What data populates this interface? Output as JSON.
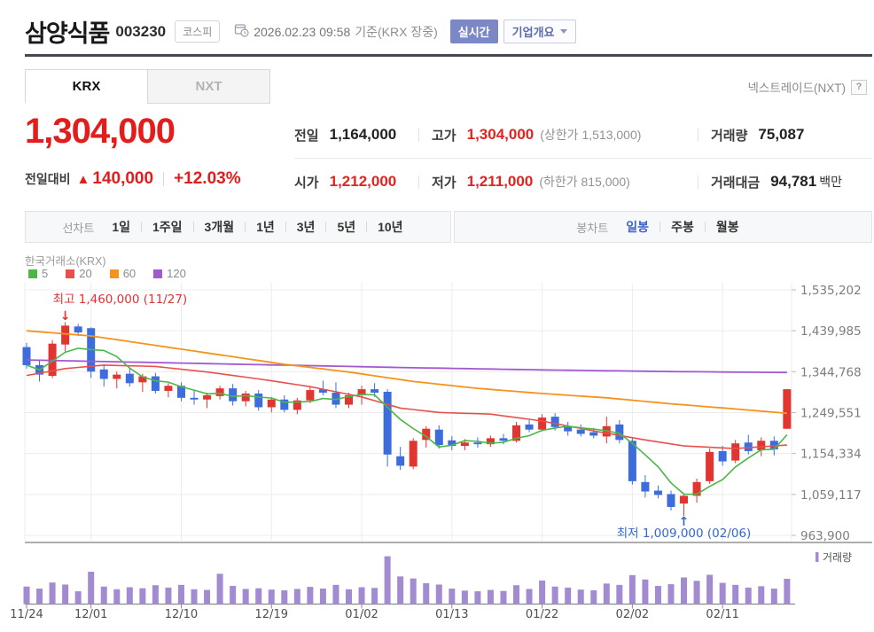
{
  "header": {
    "title": "삼양식품",
    "code": "003230",
    "market_badge": "코스피",
    "datetime_text": "2026.02.23 09:58",
    "basis_text": "기준(KRX 장중)",
    "realtime_badge": "실시간",
    "overview_button": "기업개요"
  },
  "tabs": {
    "krx": "KRX",
    "nxt": "NXT",
    "nextrade_link": "넥스트레이드(NXT)",
    "help_icon": "?"
  },
  "price": {
    "current": "1,304,000",
    "change_label": "전일대비",
    "up_triangle": "▲",
    "change_value": "140,000",
    "change_percent": "+12.03%"
  },
  "summary": {
    "rows": [
      {
        "cells": [
          {
            "label": "전일",
            "value": "1,164,000"
          },
          {
            "label": "고가",
            "value": "1,304,000",
            "sub": "(상한가 1,513,000)"
          },
          {
            "label": "거래량",
            "value": "75,087"
          }
        ]
      },
      {
        "cells": [
          {
            "label": "시가",
            "value": "1,212,000"
          },
          {
            "label": "저가",
            "value": "1,211,000",
            "sub": "(하한가 815,000)"
          },
          {
            "label": "거래대금",
            "value": "94,781",
            "suffix": "백만"
          }
        ]
      }
    ]
  },
  "toolbar": {
    "line_group_label": "선차트",
    "line_options": [
      "1일",
      "1주일",
      "3개월",
      "1년",
      "3년",
      "5년",
      "10년"
    ],
    "candle_group_label": "봉차트",
    "candle_options": [
      {
        "label": "일봉",
        "active": true
      },
      {
        "label": "주봉",
        "active": false
      },
      {
        "label": "월봉",
        "active": false
      }
    ]
  },
  "chart_data": {
    "type": "candlestick",
    "exchange_label": "한국거래소(KRX)",
    "ma_legend": [
      {
        "label": "5",
        "color": "#4cb748"
      },
      {
        "label": "20",
        "color": "#e8504c"
      },
      {
        "label": "60",
        "color": "#f5941d"
      },
      {
        "label": "120",
        "color": "#a259cf"
      }
    ],
    "y_ticks": [
      "1,535,202",
      "1,439,985",
      "1,344,768",
      "1,249,551",
      "1,154,334",
      "1,059,117",
      "963,900"
    ],
    "y_tick_values": [
      1535202,
      1439985,
      1344768,
      1249551,
      1154334,
      1059117,
      963900
    ],
    "x_ticks": [
      {
        "label": "11/24",
        "index": 0
      },
      {
        "label": "12/01",
        "index": 5
      },
      {
        "label": "12/10",
        "index": 12
      },
      {
        "label": "12/19",
        "index": 19
      },
      {
        "label": "01/02",
        "index": 26
      },
      {
        "label": "01/13",
        "index": 33
      },
      {
        "label": "01/22",
        "index": 40
      },
      {
        "label": "02/02",
        "index": 47
      },
      {
        "label": "02/11",
        "index": 54
      }
    ],
    "annotations": {
      "high": {
        "label": "최고 1,460,000 (11/27)",
        "index": 3,
        "price": 1460000,
        "arrow": "↓",
        "color": "#e03333"
      },
      "low": {
        "label": "최저 1,009,000 (02/06)",
        "index": 51,
        "price": 1009000,
        "arrow": "↑",
        "color": "#3468d0"
      }
    },
    "volume_label": "거래량",
    "colors": {
      "up": "#e13531",
      "down": "#3d6cdd",
      "ma5": "#4cb748",
      "ma20": "#e8504c",
      "ma60": "#f5941d",
      "ma120": "#a259cf",
      "volume": "#a28bd0",
      "grid": "#ececec",
      "axis_text": "#7d7d7d",
      "x_text": "#4f4f4f"
    },
    "candles": [
      [
        1402000,
        1412000,
        1352000,
        1360000,
        52000
      ],
      [
        1360000,
        1372000,
        1322000,
        1338000,
        46000
      ],
      [
        1335000,
        1418000,
        1330000,
        1410000,
        64000
      ],
      [
        1408000,
        1460000,
        1392000,
        1452000,
        58000
      ],
      [
        1450000,
        1456000,
        1428000,
        1436000,
        38000
      ],
      [
        1446000,
        1448000,
        1330000,
        1345000,
        96000
      ],
      [
        1350000,
        1362000,
        1310000,
        1328000,
        52000
      ],
      [
        1328000,
        1345000,
        1306000,
        1338000,
        44000
      ],
      [
        1340000,
        1352000,
        1310000,
        1318000,
        50000
      ],
      [
        1320000,
        1340000,
        1298000,
        1334000,
        47000
      ],
      [
        1334000,
        1342000,
        1294000,
        1300000,
        56000
      ],
      [
        1300000,
        1318000,
        1285000,
        1312000,
        49000
      ],
      [
        1312000,
        1320000,
        1276000,
        1284000,
        57000
      ],
      [
        1284000,
        1302000,
        1268000,
        1280000,
        44000
      ],
      [
        1280000,
        1296000,
        1260000,
        1290000,
        42000
      ],
      [
        1288000,
        1312000,
        1280000,
        1306000,
        90000
      ],
      [
        1306000,
        1316000,
        1266000,
        1276000,
        54000
      ],
      [
        1276000,
        1300000,
        1264000,
        1294000,
        45000
      ],
      [
        1294000,
        1302000,
        1254000,
        1262000,
        47000
      ],
      [
        1262000,
        1286000,
        1250000,
        1280000,
        43000
      ],
      [
        1280000,
        1290000,
        1250000,
        1256000,
        41000
      ],
      [
        1256000,
        1284000,
        1246000,
        1278000,
        45000
      ],
      [
        1278000,
        1310000,
        1272000,
        1302000,
        51000
      ],
      [
        1304000,
        1324000,
        1290000,
        1296000,
        46000
      ],
      [
        1296000,
        1320000,
        1260000,
        1268000,
        57000
      ],
      [
        1268000,
        1296000,
        1260000,
        1290000,
        44000
      ],
      [
        1290000,
        1312000,
        1268000,
        1304000,
        50000
      ],
      [
        1304000,
        1318000,
        1286000,
        1296000,
        48000
      ],
      [
        1298000,
        1304000,
        1124000,
        1152000,
        142000
      ],
      [
        1148000,
        1170000,
        1116000,
        1126000,
        82000
      ],
      [
        1124000,
        1190000,
        1118000,
        1184000,
        76000
      ],
      [
        1186000,
        1218000,
        1168000,
        1212000,
        62000
      ],
      [
        1210000,
        1220000,
        1166000,
        1174000,
        58000
      ],
      [
        1185000,
        1195000,
        1162000,
        1172000,
        46000
      ],
      [
        1172000,
        1188000,
        1162000,
        1180000,
        40000
      ],
      [
        1180000,
        1192000,
        1168000,
        1176000,
        38000
      ],
      [
        1176000,
        1196000,
        1170000,
        1190000,
        42000
      ],
      [
        1190000,
        1200000,
        1176000,
        1184000,
        39000
      ],
      [
        1184000,
        1228000,
        1180000,
        1220000,
        56000
      ],
      [
        1222000,
        1232000,
        1204000,
        1210000,
        45000
      ],
      [
        1210000,
        1246000,
        1206000,
        1238000,
        70000
      ],
      [
        1240000,
        1248000,
        1208000,
        1216000,
        52000
      ],
      [
        1216000,
        1228000,
        1196000,
        1206000,
        49000
      ],
      [
        1210000,
        1222000,
        1194000,
        1200000,
        43000
      ],
      [
        1204000,
        1214000,
        1190000,
        1196000,
        41000
      ],
      [
        1194000,
        1240000,
        1178000,
        1218000,
        61000
      ],
      [
        1222000,
        1232000,
        1178000,
        1186000,
        57000
      ],
      [
        1184000,
        1190000,
        1082000,
        1090000,
        86000
      ],
      [
        1088000,
        1104000,
        1052000,
        1066000,
        73000
      ],
      [
        1068000,
        1080000,
        1050000,
        1058000,
        54000
      ],
      [
        1060000,
        1068000,
        1022000,
        1030000,
        59000
      ],
      [
        1038000,
        1062000,
        1009000,
        1056000,
        79000
      ],
      [
        1056000,
        1096000,
        1040000,
        1088000,
        69000
      ],
      [
        1090000,
        1166000,
        1084000,
        1158000,
        87000
      ],
      [
        1160000,
        1172000,
        1126000,
        1136000,
        63000
      ],
      [
        1138000,
        1186000,
        1132000,
        1178000,
        57000
      ],
      [
        1180000,
        1198000,
        1152000,
        1160000,
        49000
      ],
      [
        1162000,
        1192000,
        1148000,
        1184000,
        53000
      ],
      [
        1184000,
        1194000,
        1150000,
        1164000,
        46000
      ],
      [
        1212000,
        1304000,
        1211000,
        1304000,
        75087
      ]
    ],
    "ma20_anchors": [
      [
        0,
        1336000
      ],
      [
        3,
        1352000
      ],
      [
        6,
        1360000
      ],
      [
        10,
        1357000
      ],
      [
        14,
        1344000
      ],
      [
        18,
        1328000
      ],
      [
        22,
        1310000
      ],
      [
        26,
        1286000
      ],
      [
        29,
        1260000
      ],
      [
        32,
        1250000
      ],
      [
        36,
        1246000
      ],
      [
        40,
        1230000
      ],
      [
        44,
        1207000
      ],
      [
        48,
        1186000
      ],
      [
        51,
        1172000
      ],
      [
        55,
        1166000
      ],
      [
        59,
        1174000
      ]
    ],
    "ma60_anchors": [
      [
        0,
        1440000
      ],
      [
        5,
        1428000
      ],
      [
        10,
        1406000
      ],
      [
        15,
        1384000
      ],
      [
        20,
        1362000
      ],
      [
        25,
        1344000
      ],
      [
        30,
        1322000
      ],
      [
        35,
        1306000
      ],
      [
        40,
        1294000
      ],
      [
        45,
        1284000
      ],
      [
        50,
        1270000
      ],
      [
        55,
        1258000
      ],
      [
        59,
        1248000
      ]
    ],
    "ma120_anchors": [
      [
        0,
        1372000
      ],
      [
        10,
        1366000
      ],
      [
        20,
        1360000
      ],
      [
        30,
        1354000
      ],
      [
        40,
        1349000
      ],
      [
        50,
        1345000
      ],
      [
        59,
        1343000
      ]
    ]
  }
}
